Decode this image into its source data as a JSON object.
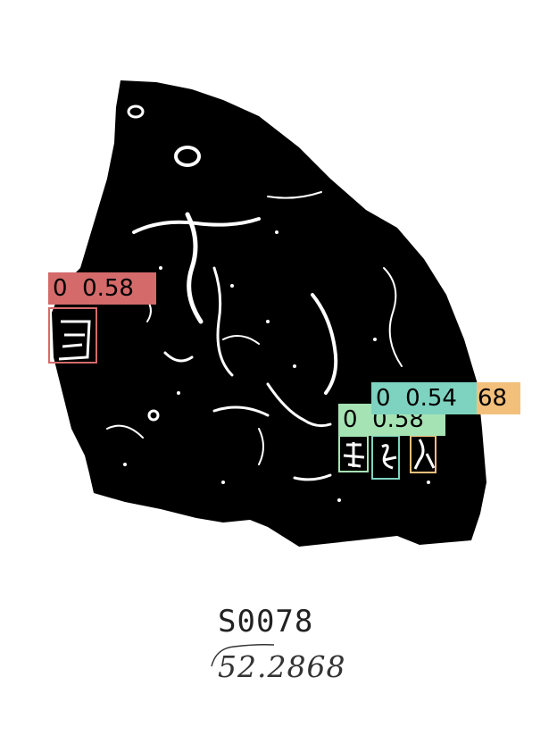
{
  "image": {
    "description_hidden": "",
    "background_color": "#ffffff",
    "fragment_color": "#000000",
    "crack_color": "#ffffff"
  },
  "detections": [
    {
      "class": "0",
      "score": "0.58",
      "label": "0  0.58",
      "color": "#d46a6a"
    },
    {
      "class": "0",
      "score": "0.58",
      "label": "0  0.58",
      "color": "#a6e3b4"
    },
    {
      "class": "0",
      "score": "0.54",
      "label": "0  0.54",
      "color": "#7ed3c0"
    },
    {
      "class": "0",
      "score": "0.68",
      "label": "68",
      "color": "#f3c07c"
    }
  ],
  "caption": {
    "catalog_id": "S0078",
    "reference": "52.2868"
  }
}
